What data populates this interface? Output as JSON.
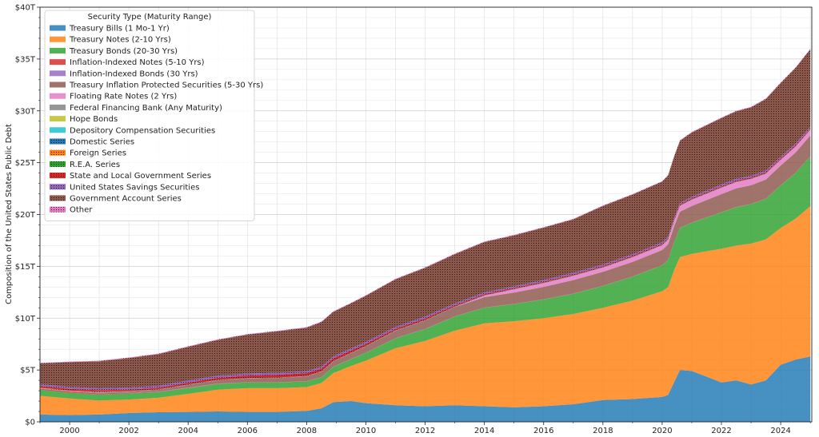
{
  "chart_data": {
    "type": "area",
    "stacked": true,
    "ylabel": "Composition of the United States Public Debt",
    "xlabel": "",
    "xlim": [
      1999.0,
      2025.05
    ],
    "ylim": [
      0,
      40
    ],
    "x_ticks": [
      2000,
      2002,
      2004,
      2006,
      2008,
      2010,
      2012,
      2014,
      2016,
      2018,
      2020,
      2022,
      2024
    ],
    "x_tick_labels": [
      "2000",
      "2002",
      "2004",
      "2006",
      "2008",
      "2010",
      "2012",
      "2014",
      "2016",
      "2018",
      "2020",
      "2022",
      "2024"
    ],
    "y_ticks": [
      0,
      5,
      10,
      15,
      20,
      25,
      30,
      35,
      40
    ],
    "y_tick_labels": [
      "$0",
      "$5T",
      "$10T",
      "$15T",
      "$20T",
      "$25T",
      "$30T",
      "$35T",
      "$40T"
    ],
    "grid": true,
    "legend_title": "Security Type (Maturity Range)",
    "legend_position": "top-left",
    "x": [
      1999.0,
      2000.0,
      2001.0,
      2002.0,
      2003.0,
      2004.0,
      2005.0,
      2006.0,
      2007.0,
      2008.0,
      2008.5,
      2008.9,
      2009.5,
      2010.0,
      2011.0,
      2012.0,
      2013.0,
      2014.0,
      2015.0,
      2016.0,
      2017.0,
      2018.0,
      2019.0,
      2020.0,
      2020.2,
      2020.4,
      2020.6,
      2021.0,
      2022.0,
      2022.5,
      2023.0,
      2023.5,
      2024.0,
      2024.5,
      2025.0
    ],
    "series": [
      {
        "name": "Treasury Bills (1 Mo-1 Yr)",
        "color": "#1f77b4",
        "values": [
          0.7,
          0.65,
          0.7,
          0.85,
          0.92,
          0.95,
          1.0,
          0.95,
          0.95,
          1.05,
          1.3,
          1.9,
          2.0,
          1.8,
          1.6,
          1.5,
          1.6,
          1.5,
          1.4,
          1.5,
          1.7,
          2.1,
          2.2,
          2.4,
          2.6,
          3.8,
          5.0,
          4.9,
          3.8,
          4.0,
          3.6,
          4.0,
          5.5,
          6.0,
          6.3
        ]
      },
      {
        "name": "Treasury Notes (2-10 Yrs)",
        "color": "#ff7f0e",
        "values": [
          1.8,
          1.6,
          1.35,
          1.3,
          1.4,
          1.75,
          2.1,
          2.3,
          2.3,
          2.3,
          2.45,
          2.8,
          3.4,
          4.1,
          5.5,
          6.3,
          7.2,
          8.0,
          8.3,
          8.5,
          8.7,
          8.9,
          9.5,
          10.2,
          10.4,
          10.8,
          10.9,
          11.3,
          12.9,
          13.0,
          13.6,
          13.6,
          13.2,
          13.6,
          14.5
        ]
      },
      {
        "name": "Treasury Bonds (20-30 Yrs)",
        "color": "#2ca02c",
        "values": [
          0.6,
          0.55,
          0.6,
          0.6,
          0.55,
          0.55,
          0.55,
          0.55,
          0.55,
          0.55,
          0.55,
          0.6,
          0.65,
          0.75,
          0.95,
          1.15,
          1.35,
          1.5,
          1.65,
          1.8,
          1.95,
          2.1,
          2.3,
          2.5,
          2.6,
          2.7,
          2.8,
          3.0,
          3.5,
          3.7,
          3.8,
          3.9,
          4.1,
          4.4,
          4.8
        ]
      },
      {
        "name": "Inflation-Indexed Notes (5-10 Yrs)",
        "color": "#d62728",
        "values": [
          0.1,
          0.12,
          0.1,
          0.05,
          0.03,
          0.02,
          0.02,
          0.01,
          0.01,
          0.01,
          0.01,
          0.01,
          0.01,
          0.01,
          0.01,
          0.01,
          0.01,
          0.01,
          0.01,
          0.01,
          0.01,
          0.01,
          0.01,
          0.01,
          0.01,
          0.01,
          0.01,
          0.01,
          0.01,
          0.01,
          0.01,
          0.01,
          0.01,
          0.01,
          0.01
        ]
      },
      {
        "name": "Inflation-Indexed Bonds (30 Yrs)",
        "color": "#9467bd",
        "values": [
          0.03,
          0.03,
          0.03,
          0.02,
          0.02,
          0.02,
          0.02,
          0.01,
          0.01,
          0.01,
          0.01,
          0.01,
          0.01,
          0.01,
          0.01,
          0.01,
          0.01,
          0.01,
          0.01,
          0.01,
          0.01,
          0.01,
          0.01,
          0.01,
          0.01,
          0.01,
          0.01,
          0.01,
          0.01,
          0.01,
          0.01,
          0.01,
          0.01,
          0.01,
          0.01
        ]
      },
      {
        "name": "Treasury Inflation Protected Securities (5-30 Yrs)",
        "color": "#8c564b",
        "values": [
          0.0,
          0.0,
          0.05,
          0.1,
          0.15,
          0.25,
          0.3,
          0.35,
          0.4,
          0.45,
          0.5,
          0.5,
          0.55,
          0.6,
          0.7,
          0.8,
          0.9,
          1.0,
          1.1,
          1.2,
          1.3,
          1.35,
          1.4,
          1.45,
          1.5,
          1.5,
          1.55,
          1.6,
          1.75,
          1.8,
          1.8,
          1.85,
          1.9,
          1.95,
          2.0
        ]
      },
      {
        "name": "Floating Rate Notes (2 Yrs)",
        "color": "#e377c2",
        "values": [
          0.0,
          0.0,
          0.0,
          0.0,
          0.0,
          0.0,
          0.0,
          0.0,
          0.0,
          0.0,
          0.0,
          0.0,
          0.0,
          0.0,
          0.0,
          0.0,
          0.0,
          0.15,
          0.3,
          0.35,
          0.4,
          0.4,
          0.45,
          0.45,
          0.45,
          0.5,
          0.55,
          0.6,
          0.6,
          0.6,
          0.6,
          0.55,
          0.55,
          0.55,
          0.55
        ]
      },
      {
        "name": "Federal Financing Bank (Any Maturity)",
        "color": "#7f7f7f",
        "values": [
          0.01,
          0.01,
          0.01,
          0.01,
          0.01,
          0.01,
          0.01,
          0.01,
          0.01,
          0.01,
          0.01,
          0.01,
          0.01,
          0.01,
          0.01,
          0.01,
          0.01,
          0.01,
          0.01,
          0.01,
          0.01,
          0.01,
          0.01,
          0.01,
          0.01,
          0.01,
          0.01,
          0.01,
          0.01,
          0.01,
          0.01,
          0.01,
          0.01,
          0.01,
          0.01
        ]
      },
      {
        "name": "Hope Bonds",
        "color": "#bcbd22",
        "values": [
          0.0,
          0.0,
          0.0,
          0.0,
          0.0,
          0.0,
          0.0,
          0.0,
          0.0,
          0.0,
          0.0,
          0.0,
          0.0,
          0.0,
          0.0,
          0.0,
          0.0,
          0.0,
          0.0,
          0.0,
          0.0,
          0.0,
          0.0,
          0.0,
          0.0,
          0.0,
          0.0,
          0.0,
          0.0,
          0.0,
          0.0,
          0.0,
          0.0,
          0.0,
          0.0
        ]
      },
      {
        "name": "Depository Compensation Securities",
        "color": "#17becf",
        "values": [
          0.0,
          0.0,
          0.0,
          0.0,
          0.0,
          0.0,
          0.0,
          0.0,
          0.0,
          0.0,
          0.0,
          0.0,
          0.0,
          0.0,
          0.0,
          0.0,
          0.0,
          0.0,
          0.0,
          0.0,
          0.0,
          0.0,
          0.0,
          0.0,
          0.0,
          0.0,
          0.0,
          0.0,
          0.0,
          0.0,
          0.0,
          0.0,
          0.0,
          0.0,
          0.0
        ]
      },
      {
        "name": "Domestic Series",
        "color": "#1f77b4",
        "hatched": true,
        "values": [
          0.03,
          0.03,
          0.03,
          0.03,
          0.03,
          0.03,
          0.03,
          0.03,
          0.03,
          0.03,
          0.03,
          0.03,
          0.03,
          0.03,
          0.03,
          0.03,
          0.03,
          0.03,
          0.03,
          0.03,
          0.03,
          0.03,
          0.03,
          0.03,
          0.03,
          0.03,
          0.03,
          0.03,
          0.03,
          0.03,
          0.03,
          0.03,
          0.03,
          0.03,
          0.03
        ]
      },
      {
        "name": "Foreign Series",
        "color": "#ff7f0e",
        "hatched": true,
        "values": [
          0.03,
          0.03,
          0.03,
          0.02,
          0.02,
          0.02,
          0.02,
          0.01,
          0.01,
          0.01,
          0.01,
          0.01,
          0.01,
          0.01,
          0.01,
          0.01,
          0.01,
          0.01,
          0.01,
          0.01,
          0.01,
          0.01,
          0.01,
          0.01,
          0.01,
          0.01,
          0.01,
          0.01,
          0.01,
          0.01,
          0.01,
          0.01,
          0.01,
          0.01,
          0.01
        ]
      },
      {
        "name": "R.E.A. Series",
        "color": "#2ca02c",
        "hatched": true,
        "values": [
          0.0,
          0.0,
          0.0,
          0.0,
          0.0,
          0.0,
          0.0,
          0.0,
          0.0,
          0.0,
          0.0,
          0.0,
          0.0,
          0.0,
          0.0,
          0.0,
          0.0,
          0.0,
          0.0,
          0.0,
          0.0,
          0.0,
          0.0,
          0.0,
          0.0,
          0.0,
          0.0,
          0.0,
          0.0,
          0.0,
          0.0,
          0.0,
          0.0,
          0.0,
          0.0
        ]
      },
      {
        "name": "State and Local Government Series",
        "color": "#d62728",
        "hatched": true,
        "values": [
          0.15,
          0.16,
          0.15,
          0.13,
          0.15,
          0.18,
          0.2,
          0.24,
          0.27,
          0.27,
          0.26,
          0.25,
          0.22,
          0.2,
          0.15,
          0.15,
          0.12,
          0.1,
          0.1,
          0.1,
          0.1,
          0.1,
          0.1,
          0.1,
          0.1,
          0.1,
          0.1,
          0.1,
          0.1,
          0.1,
          0.1,
          0.1,
          0.1,
          0.1,
          0.1
        ]
      },
      {
        "name": "United States Savings Securities",
        "color": "#9467bd",
        "hatched": true,
        "values": [
          0.18,
          0.18,
          0.19,
          0.19,
          0.2,
          0.2,
          0.2,
          0.2,
          0.19,
          0.19,
          0.19,
          0.19,
          0.19,
          0.19,
          0.18,
          0.18,
          0.18,
          0.17,
          0.16,
          0.16,
          0.16,
          0.15,
          0.15,
          0.15,
          0.15,
          0.14,
          0.14,
          0.14,
          0.18,
          0.18,
          0.17,
          0.17,
          0.16,
          0.16,
          0.16
        ]
      },
      {
        "name": "Government Account Series",
        "color": "#8c564b",
        "hatched": true,
        "values": [
          2.0,
          2.4,
          2.6,
          2.85,
          3.05,
          3.25,
          3.45,
          3.75,
          4.0,
          4.2,
          4.3,
          4.3,
          4.35,
          4.45,
          4.6,
          4.7,
          4.75,
          4.85,
          4.9,
          5.05,
          5.15,
          5.65,
          5.75,
          5.85,
          5.9,
          5.95,
          6.0,
          6.2,
          6.4,
          6.5,
          6.6,
          6.9,
          7.1,
          7.3,
          7.45
        ]
      },
      {
        "name": "Other",
        "color": "#e377c2",
        "hatched": true,
        "values": [
          0.05,
          0.05,
          0.05,
          0.05,
          0.05,
          0.05,
          0.05,
          0.05,
          0.05,
          0.05,
          0.05,
          0.05,
          0.05,
          0.05,
          0.05,
          0.05,
          0.05,
          0.05,
          0.05,
          0.05,
          0.05,
          0.05,
          0.05,
          0.05,
          0.05,
          0.05,
          0.05,
          0.05,
          0.05,
          0.05,
          0.05,
          0.05,
          0.05,
          0.05,
          0.05
        ]
      }
    ]
  }
}
